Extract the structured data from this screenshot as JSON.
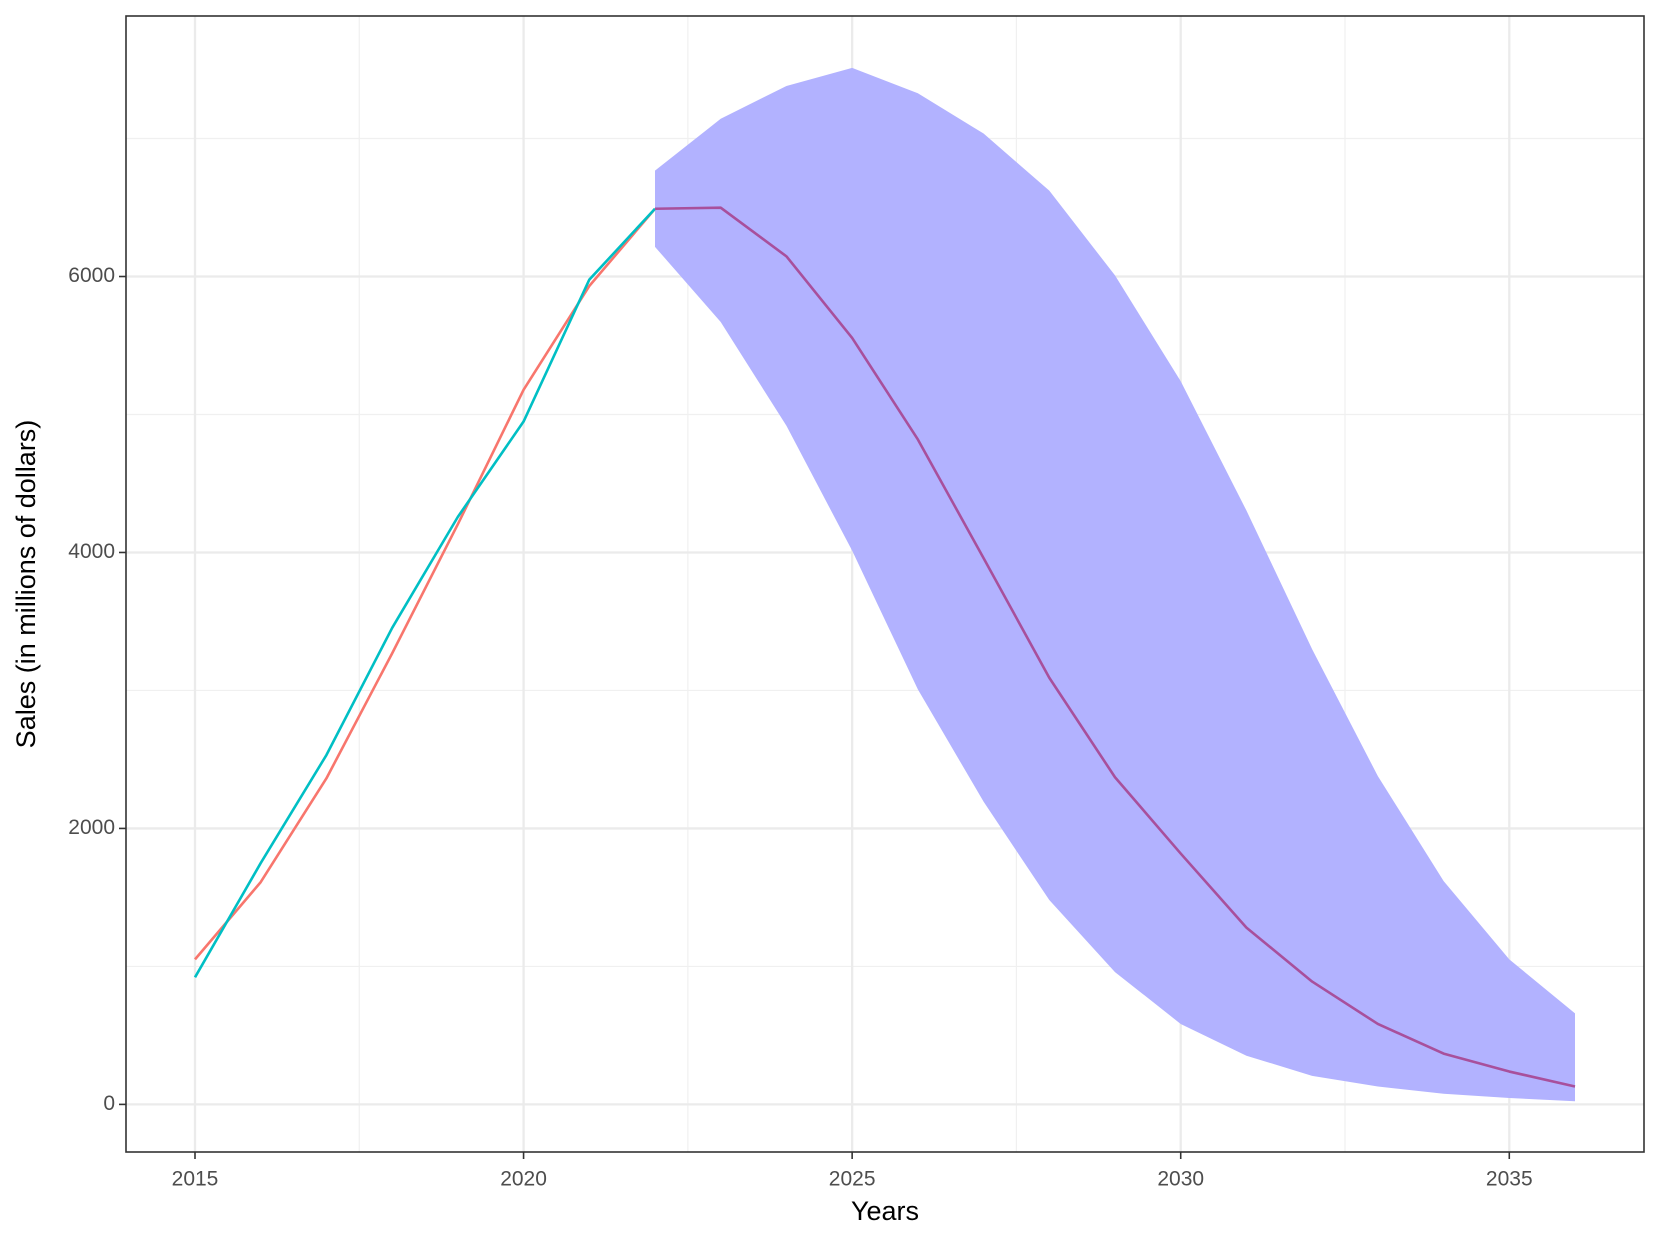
{
  "chart_data": {
    "type": "line",
    "x_label": "Years",
    "y_label": "Sales (in millions of dollars)",
    "x": [
      2015,
      2016,
      2017,
      2018,
      2019,
      2020,
      2021,
      2022,
      2023,
      2024,
      2025,
      2026,
      2027,
      2028,
      2029,
      2030,
      2031,
      2032,
      2033,
      2034,
      2035,
      2036
    ],
    "band": {
      "color": "#b2b2ff",
      "lower": [
        null,
        null,
        null,
        null,
        null,
        null,
        null,
        6215,
        5670,
        4918,
        4013,
        3008,
        2194,
        1481,
        959,
        583,
        353,
        207,
        130,
        77,
        46,
        23
      ],
      "upper": [
        null,
        null,
        null,
        null,
        null,
        null,
        null,
        6767,
        7143,
        7381,
        7512,
        7328,
        7036,
        6622,
        6008,
        5241,
        4304,
        3299,
        2379,
        1619,
        1051,
        660
      ]
    },
    "series": [
      {
        "color": "#f8766d",
        "values": [
          1051,
          1611,
          2363,
          3269,
          4205,
          5179,
          5931,
          6491,
          null,
          null,
          null,
          null,
          null,
          null,
          null,
          null,
          null,
          null,
          null,
          null,
          null,
          null
        ]
      },
      {
        "color": "#00bfc4",
        "values": [
          921,
          1749,
          2532,
          3453,
          4258,
          4949,
          5977,
          6491,
          null,
          null,
          null,
          null,
          null,
          null,
          null,
          null,
          null,
          null,
          null,
          null,
          null,
          null
        ]
      },
      {
        "color": "#a8509c",
        "values": [
          null,
          null,
          null,
          null,
          null,
          null,
          null,
          6491,
          6499,
          6146,
          5555,
          4819,
          3959,
          3092,
          2371,
          1818,
          1281,
          890,
          583,
          368,
          238,
          130
        ]
      }
    ],
    "xlim": [
      2013.95,
      2037.05
    ],
    "xticks": [
      2015,
      2020,
      2025,
      2030,
      2035
    ],
    "ylim": [
      -345,
      7888
    ],
    "yticks": [
      0,
      2000,
      4000,
      6000
    ],
    "grid": true
  }
}
